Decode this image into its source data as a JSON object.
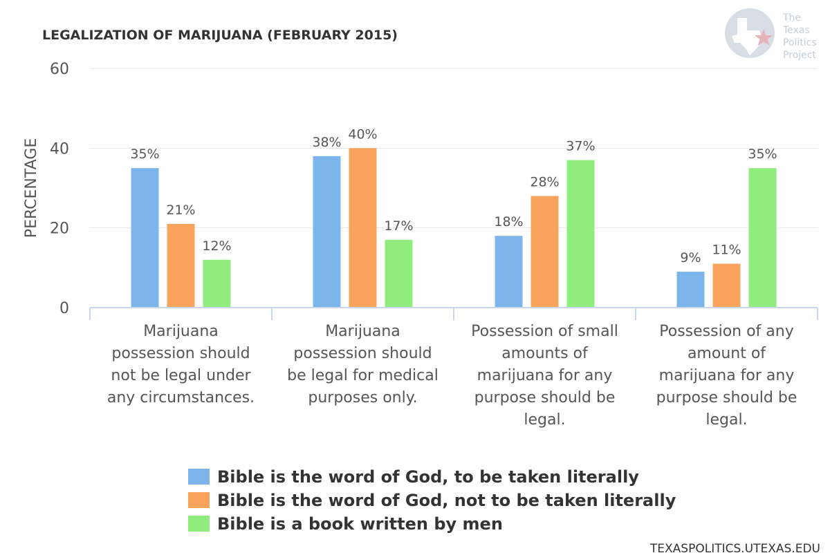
{
  "chart_data": {
    "type": "bar",
    "title": "LEGALIZATION OF MARIJUANA (FEBRUARY 2015)",
    "xlabel": "",
    "ylabel": "PERCENTAGE",
    "ylim": [
      0,
      60
    ],
    "yticks": [
      0,
      20,
      40,
      60
    ],
    "categories": [
      "Marijuana possession should not be legal under any circumstances.",
      "Marijuana possession should be legal for medical purposes only.",
      "Possession of small amounts of marijuana for any purpose should be legal.",
      "Possession of any amount of marijuana for any purpose should be legal."
    ],
    "category_lines": [
      [
        "Marijuana",
        "possession should",
        "not be legal under",
        "any circumstances."
      ],
      [
        "Marijuana",
        "possession should",
        "be legal for medical",
        "purposes only."
      ],
      [
        "Possession of small",
        "amounts of",
        "marijuana for any",
        "purpose should be",
        "legal."
      ],
      [
        "Possession of any",
        "amount of",
        "marijuana for any",
        "purpose should be",
        "legal."
      ]
    ],
    "series": [
      {
        "name": "Bible is the word of God, to be taken literally",
        "color": "#7cb5ec",
        "values": [
          35,
          38,
          18,
          9
        ],
        "labels": [
          "35%",
          "38%",
          "18%",
          "9%"
        ]
      },
      {
        "name": "Bible is the word of God, not to be taken literally",
        "color": "#f7a35c",
        "values": [
          21,
          40,
          28,
          11
        ],
        "labels": [
          "21%",
          "40%",
          "28%",
          "11%"
        ]
      },
      {
        "name": "Bible is a book written by men",
        "color": "#90ed7d",
        "values": [
          12,
          17,
          37,
          35
        ],
        "labels": [
          "12%",
          "17%",
          "37%",
          "35%"
        ]
      }
    ],
    "grid": true,
    "legend_position": "bottom-center"
  },
  "logo": {
    "lines": [
      "The",
      "Texas",
      "Politics",
      "Project"
    ],
    "icon": "texas-star-logo-icon"
  },
  "footer": {
    "text": "TEXASPOLITICS.UTEXAS.EDU"
  },
  "colors": {
    "grid": "#e6e6e6",
    "axis": "#ccd6eb",
    "logo_circle": "#d7dee6",
    "logo_star": "#e6b3b8"
  }
}
